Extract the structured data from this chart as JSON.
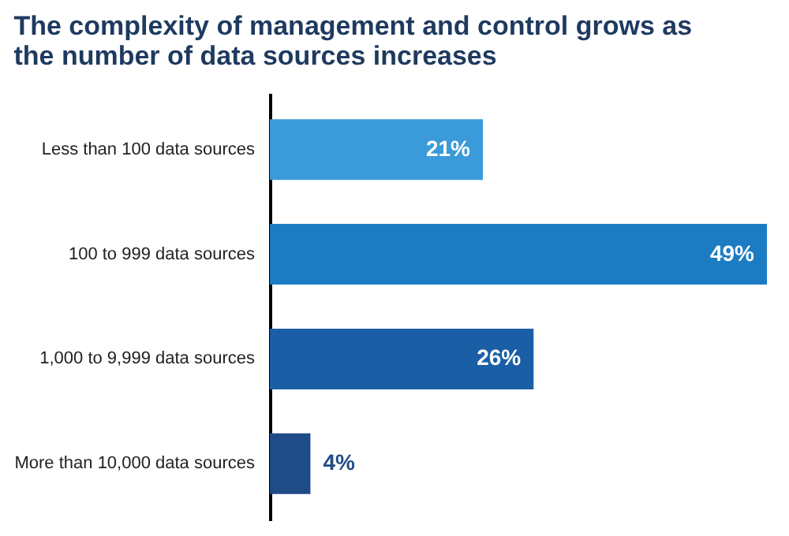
{
  "chart_data": {
    "type": "bar",
    "orientation": "horizontal",
    "title": "The complexity of management and control grows as the number of data sources increases",
    "categories": [
      "Less than 100 data sources",
      "100 to 999 data sources",
      "1,000 to 9,999 data sources",
      "More than 10,000 data sources"
    ],
    "values": [
      21,
      49,
      26,
      4
    ],
    "colors": [
      "#3b9ad9",
      "#1b7cc3",
      "#1a5fa6",
      "#1f4b87"
    ],
    "value_labels": [
      "21%",
      "49%",
      "26%",
      "4%"
    ]
  }
}
